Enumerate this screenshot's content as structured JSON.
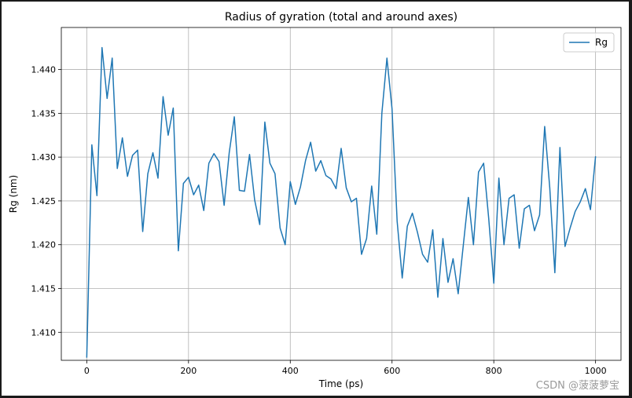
{
  "chart_data": {
    "type": "line",
    "title": "Radius of gyration (total and around axes)",
    "xlabel": "Time (ps)",
    "ylabel": "Rg (nm)",
    "xlim": [
      -50,
      1050
    ],
    "ylim": [
      1.4068,
      1.4448
    ],
    "xticks": [
      0,
      200,
      400,
      600,
      800,
      1000
    ],
    "yticks": [
      1.41,
      1.415,
      1.42,
      1.425,
      1.43,
      1.435,
      1.44
    ],
    "grid": true,
    "legend_position": "top-right",
    "series": [
      {
        "name": "Rg",
        "color": "#1f77b4",
        "x": [
          0,
          10,
          20,
          30,
          40,
          50,
          60,
          70,
          80,
          90,
          100,
          110,
          120,
          130,
          140,
          150,
          160,
          170,
          180,
          190,
          200,
          210,
          220,
          230,
          240,
          250,
          260,
          270,
          280,
          290,
          300,
          310,
          320,
          330,
          340,
          350,
          360,
          370,
          380,
          390,
          400,
          410,
          420,
          430,
          440,
          450,
          460,
          470,
          480,
          490,
          500,
          510,
          520,
          530,
          540,
          550,
          560,
          570,
          580,
          590,
          600,
          610,
          620,
          630,
          640,
          650,
          660,
          670,
          680,
          690,
          700,
          710,
          720,
          730,
          740,
          750,
          760,
          770,
          780,
          790,
          800,
          810,
          820,
          830,
          840,
          850,
          860,
          870,
          880,
          890,
          900,
          910,
          920,
          930,
          940,
          950,
          960,
          970,
          980,
          990,
          1000
        ],
        "y": [
          1.4071,
          1.4314,
          1.4256,
          1.4425,
          1.4367,
          1.4413,
          1.4287,
          1.4322,
          1.4278,
          1.4302,
          1.4308,
          1.4215,
          1.4281,
          1.4305,
          1.4276,
          1.4369,
          1.4325,
          1.4356,
          1.4193,
          1.427,
          1.4277,
          1.4257,
          1.4268,
          1.4239,
          1.4293,
          1.4304,
          1.4295,
          1.4245,
          1.4305,
          1.4346,
          1.4262,
          1.4261,
          1.4303,
          1.4251,
          1.4223,
          1.434,
          1.4293,
          1.4281,
          1.4219,
          1.42,
          1.4272,
          1.4246,
          1.4266,
          1.4296,
          1.4317,
          1.4284,
          1.4296,
          1.4279,
          1.4275,
          1.4264,
          1.431,
          1.4265,
          1.4249,
          1.4253,
          1.4189,
          1.4207,
          1.4267,
          1.4212,
          1.435,
          1.4413,
          1.4355,
          1.4227,
          1.4162,
          1.4221,
          1.4236,
          1.4214,
          1.4189,
          1.418,
          1.4217,
          1.414,
          1.4207,
          1.4157,
          1.4184,
          1.4144,
          1.4199,
          1.4254,
          1.42,
          1.4283,
          1.4293,
          1.423,
          1.4156,
          1.4276,
          1.42,
          1.4253,
          1.4257,
          1.4196,
          1.4241,
          1.4245,
          1.4216,
          1.4234,
          1.4335,
          1.4265,
          1.4168,
          1.4311,
          1.4198,
          1.4219,
          1.4238,
          1.4249,
          1.4264,
          1.424,
          1.4301
        ]
      }
    ]
  },
  "watermark": "CSDN @菠菠萝宝"
}
